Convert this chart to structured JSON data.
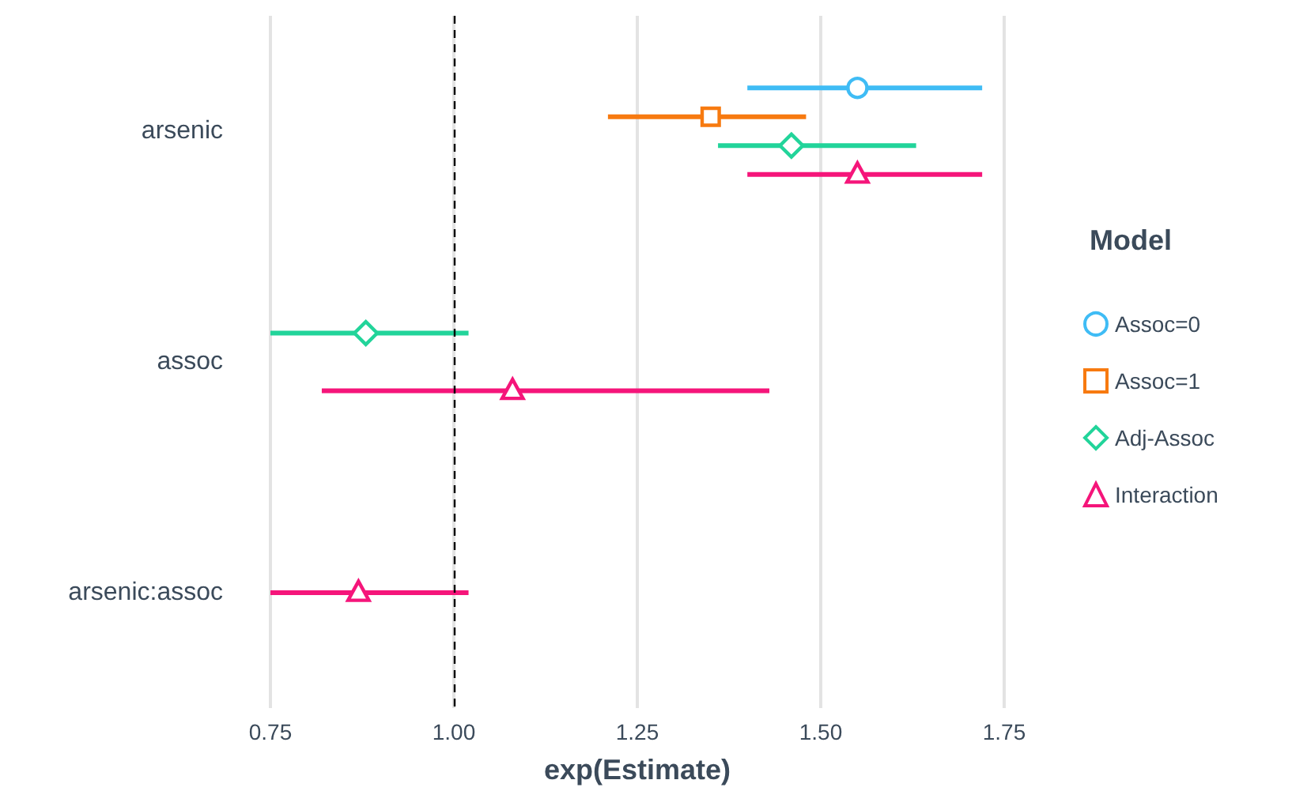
{
  "chart_data": {
    "type": "scatter",
    "orientation": "horizontal",
    "xlabel": "exp(Estimate)",
    "legend_title": "Model",
    "legend": "right",
    "grid": "x",
    "categories": [
      "arsenic",
      "assoc",
      "arsenic:assoc"
    ],
    "xlim": [
      0.75,
      1.75
    ],
    "xticks": [
      0.75,
      {
        "value": 1,
        "label": "1.00"
      },
      1.25,
      {
        "value": 1.5,
        "label": "1.50"
      },
      1.75
    ],
    "ref_lines": [
      {
        "axis": "x",
        "value": 1,
        "color": "#000000",
        "line_style": "dashed"
      }
    ],
    "series": [
      {
        "name": "Assoc=0",
        "color": "#3fbcf5",
        "marker": "circle",
        "values": [
          1.55,
          null,
          null
        ],
        "errors": [
          [
            1.4,
            1.72
          ],
          null,
          null
        ]
      },
      {
        "name": "Assoc=1",
        "color": "#f77a10",
        "marker": "square",
        "values": [
          1.35,
          null,
          null
        ],
        "errors": [
          [
            1.21,
            1.48
          ],
          null,
          null
        ]
      },
      {
        "name": "Adj-Assoc",
        "color": "#22d49a",
        "marker": "diamond",
        "values": [
          1.46,
          0.88,
          null
        ],
        "errors": [
          [
            1.36,
            1.63
          ],
          [
            0.75,
            1.02
          ],
          null
        ]
      },
      {
        "name": "Interaction",
        "color": "#f5157a",
        "marker": "triangle",
        "values": [
          1.55,
          1.08,
          0.87
        ],
        "errors": [
          [
            1.4,
            1.72
          ],
          [
            0.82,
            1.43
          ],
          [
            0.75,
            1.02
          ]
        ]
      }
    ]
  }
}
